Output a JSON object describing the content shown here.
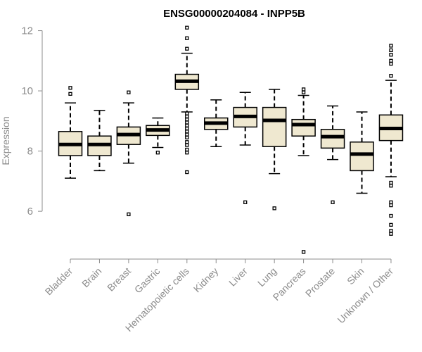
{
  "chart_data": {
    "type": "boxplot",
    "title": "ENSG00000204084 - INPP5B",
    "xlabel": "",
    "ylabel": "Expression",
    "ylim": [
      4.6,
      12.2
    ],
    "yticks": [
      6,
      8,
      10,
      12
    ],
    "box_fill": "#efe8d0",
    "categories": [
      "Bladder",
      "Brain",
      "Breast",
      "Gastric",
      "Hematopoietic cells",
      "Kidney",
      "Liver",
      "Lung",
      "Pancreas",
      "Prostate",
      "Skin",
      "Unknown / Other"
    ],
    "boxes": [
      {
        "q1": 7.85,
        "median": 8.22,
        "q3": 8.65,
        "whisker_low": 7.1,
        "whisker_high": 9.6,
        "outliers": [
          9.9,
          10.1
        ]
      },
      {
        "q1": 7.85,
        "median": 8.22,
        "q3": 8.5,
        "whisker_low": 7.35,
        "whisker_high": 9.35,
        "outliers": []
      },
      {
        "q1": 8.22,
        "median": 8.55,
        "q3": 8.8,
        "whisker_low": 7.6,
        "whisker_high": 9.6,
        "outliers": [
          5.9,
          9.95
        ]
      },
      {
        "q1": 8.52,
        "median": 8.7,
        "q3": 8.85,
        "whisker_low": 8.12,
        "whisker_high": 9.1,
        "outliers": [
          7.95
        ]
      },
      {
        "q1": 10.05,
        "median": 10.32,
        "q3": 10.55,
        "whisker_low": 9.3,
        "whisker_high": 11.25,
        "outliers": [
          7.3,
          7.95,
          8.05,
          8.2,
          8.3,
          8.45,
          8.55,
          8.65,
          8.75,
          8.85,
          8.95,
          9.05,
          9.15,
          9.25,
          11.4,
          11.75,
          12.1
        ]
      },
      {
        "q1": 8.72,
        "median": 8.93,
        "q3": 9.1,
        "whisker_low": 8.15,
        "whisker_high": 9.7,
        "outliers": []
      },
      {
        "q1": 8.8,
        "median": 9.15,
        "q3": 9.45,
        "whisker_low": 8.2,
        "whisker_high": 9.95,
        "outliers": [
          6.3
        ]
      },
      {
        "q1": 8.15,
        "median": 9.02,
        "q3": 9.45,
        "whisker_low": 7.25,
        "whisker_high": 10.05,
        "outliers": [
          6.1
        ]
      },
      {
        "q1": 8.5,
        "median": 8.88,
        "q3": 9.05,
        "whisker_low": 7.85,
        "whisker_high": 9.85,
        "outliers": [
          4.65,
          9.95,
          10.05
        ]
      },
      {
        "q1": 8.1,
        "median": 8.48,
        "q3": 8.72,
        "whisker_low": 7.72,
        "whisker_high": 9.5,
        "outliers": [
          6.3
        ]
      },
      {
        "q1": 7.35,
        "median": 7.9,
        "q3": 8.3,
        "whisker_low": 6.6,
        "whisker_high": 9.3,
        "outliers": []
      },
      {
        "q1": 8.35,
        "median": 8.75,
        "q3": 9.2,
        "whisker_low": 7.15,
        "whisker_high": 10.35,
        "outliers": [
          5.25,
          5.35,
          5.55,
          5.85,
          6.2,
          6.3,
          6.85,
          6.95,
          10.5,
          10.9,
          11.0,
          11.2,
          11.35,
          11.5
        ]
      }
    ]
  }
}
